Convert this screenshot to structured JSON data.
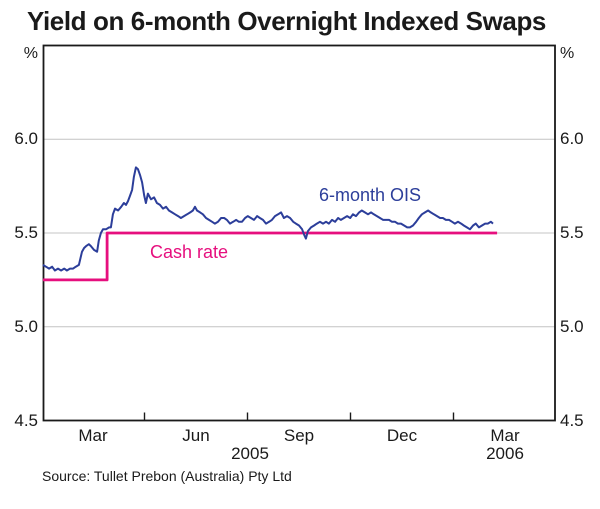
{
  "header": {
    "title": "Yield on 6-month Overnight Indexed Swaps"
  },
  "footer": {
    "source": "Source: Tullet Prebon (Australia) Pty Ltd"
  },
  "colors": {
    "axis": "#1a1a1a",
    "grid": "#c4c4c4",
    "background": "#ffffff",
    "ois_blue": "#2c3e9a",
    "cash_pink": "#e60f7e",
    "text": "#1a1a1a"
  },
  "chart_data": {
    "type": "line",
    "title": "Yield on 6-month Overnight Indexed Swaps",
    "y_unit": "%",
    "ylim": [
      4.5,
      6.5
    ],
    "y_tick_display": [
      "6.0",
      "5.5",
      "5.0",
      "4.5"
    ],
    "y_tick_values": [
      6.0,
      5.5,
      5.0,
      4.5
    ],
    "gridlines": [
      5.0,
      5.5,
      6.0
    ],
    "grid_on": true,
    "legend_position": "inline-labels",
    "x_axis": {
      "unit": "months_since_jan_2005",
      "xlim_t": [
        0.54,
        15.47
      ],
      "tick_labels": [
        {
          "label": "Mar",
          "t": 2
        },
        {
          "label": "Jun",
          "t": 5
        },
        {
          "label": "Sep",
          "t": 8
        },
        {
          "label": "Dec",
          "t": 11
        },
        {
          "label": "Mar",
          "t": 14
        }
      ],
      "minor_ticks_t": [
        3.5,
        6.5,
        9.5,
        12.5
      ],
      "year_labels": [
        {
          "label": "2005",
          "t": 6.55
        },
        {
          "label": "2006",
          "t": 14
        }
      ]
    },
    "series": [
      {
        "name": "6-month OIS",
        "color": "#2c3e9a",
        "width": 2,
        "points": [
          [
            0.54,
            5.33
          ],
          [
            0.63,
            5.32
          ],
          [
            0.72,
            5.31
          ],
          [
            0.81,
            5.32
          ],
          [
            0.89,
            5.3
          ],
          [
            0.98,
            5.31
          ],
          [
            1.07,
            5.3
          ],
          [
            1.16,
            5.31
          ],
          [
            1.24,
            5.3
          ],
          [
            1.33,
            5.31
          ],
          [
            1.42,
            5.31
          ],
          [
            1.5,
            5.32
          ],
          [
            1.59,
            5.33
          ],
          [
            1.68,
            5.4
          ],
          [
            1.74,
            5.42
          ],
          [
            1.8,
            5.43
          ],
          [
            1.88,
            5.44
          ],
          [
            1.94,
            5.43
          ],
          [
            2.03,
            5.41
          ],
          [
            2.12,
            5.4
          ],
          [
            2.17,
            5.46
          ],
          [
            2.23,
            5.5
          ],
          [
            2.29,
            5.52
          ],
          [
            2.38,
            5.52
          ],
          [
            2.47,
            5.53
          ],
          [
            2.52,
            5.53
          ],
          [
            2.58,
            5.6
          ],
          [
            2.64,
            5.63
          ],
          [
            2.73,
            5.62
          ],
          [
            2.82,
            5.64
          ],
          [
            2.9,
            5.66
          ],
          [
            2.96,
            5.65
          ],
          [
            3.02,
            5.67
          ],
          [
            3.08,
            5.7
          ],
          [
            3.14,
            5.73
          ],
          [
            3.19,
            5.8
          ],
          [
            3.25,
            5.85
          ],
          [
            3.31,
            5.84
          ],
          [
            3.37,
            5.81
          ],
          [
            3.43,
            5.77
          ],
          [
            3.49,
            5.7
          ],
          [
            3.54,
            5.66
          ],
          [
            3.6,
            5.71
          ],
          [
            3.69,
            5.68
          ],
          [
            3.78,
            5.69
          ],
          [
            3.86,
            5.66
          ],
          [
            3.95,
            5.65
          ],
          [
            4.04,
            5.63
          ],
          [
            4.13,
            5.64
          ],
          [
            4.21,
            5.62
          ],
          [
            4.3,
            5.61
          ],
          [
            4.39,
            5.6
          ],
          [
            4.48,
            5.59
          ],
          [
            4.56,
            5.58
          ],
          [
            4.65,
            5.59
          ],
          [
            4.74,
            5.6
          ],
          [
            4.83,
            5.61
          ],
          [
            4.91,
            5.62
          ],
          [
            4.97,
            5.64
          ],
          [
            5.03,
            5.62
          ],
          [
            5.12,
            5.61
          ],
          [
            5.2,
            5.6
          ],
          [
            5.29,
            5.58
          ],
          [
            5.38,
            5.57
          ],
          [
            5.47,
            5.56
          ],
          [
            5.55,
            5.55
          ],
          [
            5.64,
            5.56
          ],
          [
            5.73,
            5.58
          ],
          [
            5.82,
            5.58
          ],
          [
            5.9,
            5.57
          ],
          [
            5.99,
            5.55
          ],
          [
            6.08,
            5.56
          ],
          [
            6.17,
            5.57
          ],
          [
            6.25,
            5.56
          ],
          [
            6.34,
            5.56
          ],
          [
            6.43,
            5.58
          ],
          [
            6.51,
            5.59
          ],
          [
            6.6,
            5.58
          ],
          [
            6.69,
            5.57
          ],
          [
            6.78,
            5.59
          ],
          [
            6.86,
            5.58
          ],
          [
            6.95,
            5.57
          ],
          [
            7.04,
            5.55
          ],
          [
            7.13,
            5.56
          ],
          [
            7.21,
            5.57
          ],
          [
            7.3,
            5.59
          ],
          [
            7.39,
            5.6
          ],
          [
            7.48,
            5.61
          ],
          [
            7.56,
            5.58
          ],
          [
            7.65,
            5.59
          ],
          [
            7.74,
            5.58
          ],
          [
            7.83,
            5.56
          ],
          [
            7.91,
            5.55
          ],
          [
            8.0,
            5.54
          ],
          [
            8.09,
            5.52
          ],
          [
            8.15,
            5.49
          ],
          [
            8.2,
            5.47
          ],
          [
            8.26,
            5.51
          ],
          [
            8.35,
            5.53
          ],
          [
            8.44,
            5.54
          ],
          [
            8.52,
            5.55
          ],
          [
            8.61,
            5.56
          ],
          [
            8.7,
            5.55
          ],
          [
            8.79,
            5.56
          ],
          [
            8.87,
            5.55
          ],
          [
            8.96,
            5.57
          ],
          [
            9.05,
            5.56
          ],
          [
            9.14,
            5.58
          ],
          [
            9.22,
            5.57
          ],
          [
            9.31,
            5.58
          ],
          [
            9.4,
            5.59
          ],
          [
            9.49,
            5.58
          ],
          [
            9.57,
            5.6
          ],
          [
            9.66,
            5.59
          ],
          [
            9.75,
            5.61
          ],
          [
            9.83,
            5.62
          ],
          [
            9.92,
            5.61
          ],
          [
            10.01,
            5.6
          ],
          [
            10.1,
            5.61
          ],
          [
            10.18,
            5.6
          ],
          [
            10.27,
            5.59
          ],
          [
            10.36,
            5.58
          ],
          [
            10.45,
            5.57
          ],
          [
            10.53,
            5.57
          ],
          [
            10.62,
            5.57
          ],
          [
            10.71,
            5.56
          ],
          [
            10.8,
            5.56
          ],
          [
            10.88,
            5.55
          ],
          [
            10.97,
            5.55
          ],
          [
            11.06,
            5.54
          ],
          [
            11.15,
            5.53
          ],
          [
            11.23,
            5.53
          ],
          [
            11.32,
            5.54
          ],
          [
            11.41,
            5.56
          ],
          [
            11.49,
            5.58
          ],
          [
            11.58,
            5.6
          ],
          [
            11.67,
            5.61
          ],
          [
            11.76,
            5.62
          ],
          [
            11.84,
            5.61
          ],
          [
            11.93,
            5.6
          ],
          [
            12.02,
            5.59
          ],
          [
            12.11,
            5.58
          ],
          [
            12.19,
            5.58
          ],
          [
            12.28,
            5.57
          ],
          [
            12.37,
            5.57
          ],
          [
            12.46,
            5.56
          ],
          [
            12.54,
            5.55
          ],
          [
            12.63,
            5.56
          ],
          [
            12.72,
            5.55
          ],
          [
            12.8,
            5.54
          ],
          [
            12.89,
            5.53
          ],
          [
            12.98,
            5.52
          ],
          [
            13.07,
            5.54
          ],
          [
            13.15,
            5.55
          ],
          [
            13.24,
            5.53
          ],
          [
            13.33,
            5.54
          ],
          [
            13.42,
            5.55
          ],
          [
            13.5,
            5.55
          ],
          [
            13.59,
            5.56
          ],
          [
            13.65,
            5.55
          ]
        ]
      },
      {
        "name": "Cash rate",
        "color": "#e60f7e",
        "width": 2.8,
        "step": true,
        "points": [
          [
            0.54,
            5.25
          ],
          [
            2.41,
            5.25
          ],
          [
            2.41,
            5.5
          ],
          [
            13.77,
            5.5
          ]
        ]
      }
    ]
  }
}
